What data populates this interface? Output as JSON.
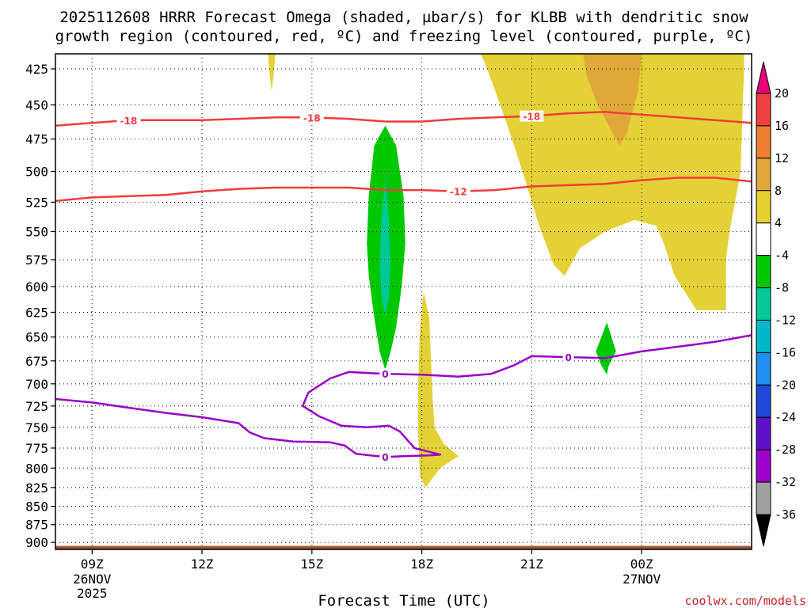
{
  "chart_data": {
    "type": "heatmap",
    "title_line1": "2025112608 HRRR Forecast Omega (shaded, µbar/s) for KLBB with dendritic snow",
    "title_line2": "growth region (contoured, red, ºC) and freezing level (contoured, purple, ºC)",
    "xlabel": "Forecast Time (UTC)",
    "credit": "coolwx.com/models",
    "x_range_hours": [
      8,
      27
    ],
    "y_scale": "log-pressure",
    "y_range_hpa": [
      415,
      910
    ],
    "y_ticks": [
      425,
      450,
      475,
      500,
      525,
      550,
      575,
      600,
      625,
      650,
      675,
      700,
      725,
      750,
      775,
      800,
      825,
      850,
      875,
      900
    ],
    "x_ticks": [
      {
        "hour": 9,
        "label": "09Z",
        "date": "26NOV",
        "year": "2025"
      },
      {
        "hour": 12,
        "label": "12Z",
        "date": "",
        "year": ""
      },
      {
        "hour": 15,
        "label": "15Z",
        "date": "",
        "year": ""
      },
      {
        "hour": 18,
        "label": "18Z",
        "date": "",
        "year": ""
      },
      {
        "hour": 21,
        "label": "21Z",
        "date": "",
        "year": ""
      },
      {
        "hour": 24,
        "label": "00Z",
        "date": "27NOV",
        "year": ""
      }
    ],
    "grid": true,
    "colorbar": {
      "levels": [
        20,
        16,
        12,
        8,
        4,
        -4,
        -8,
        -12,
        -16,
        -20,
        -24,
        -28,
        -32,
        -36
      ],
      "colors": [
        "#e8007a",
        "#f04040",
        "#f08030",
        "#e0a838",
        "#e8d030",
        "#ffffff",
        "#00c800",
        "#00c898",
        "#00b8c8",
        "#1e8ff0",
        "#2048d8",
        "#6010c8",
        "#9a00c8",
        "#a0a0a0",
        "#000000"
      ]
    },
    "omega_regions": [
      {
        "level": "4 to 8",
        "color": "#e3d137",
        "points": [
          [
            23.3,
            415
          ],
          [
            25.8,
            415
          ],
          [
            26.8,
            415
          ],
          [
            26.8,
            420
          ],
          [
            26.7,
            500
          ],
          [
            26.4,
            550
          ],
          [
            26.3,
            575
          ],
          [
            26.3,
            623
          ],
          [
            25.5,
            623
          ],
          [
            24.9,
            590
          ],
          [
            24.6,
            560
          ],
          [
            24.4,
            545
          ],
          [
            23.8,
            540
          ],
          [
            23.0,
            550
          ],
          [
            22.3,
            565
          ],
          [
            21.9,
            590
          ],
          [
            21.6,
            580
          ],
          [
            21.2,
            545
          ],
          [
            20.8,
            505
          ],
          [
            20.4,
            470
          ],
          [
            20.0,
            440
          ],
          [
            19.7,
            420
          ],
          [
            19.6,
            415
          ]
        ]
      },
      {
        "level": "8 to 12",
        "color": "#e0a838",
        "points": [
          [
            22.4,
            415
          ],
          [
            24.0,
            415
          ],
          [
            23.9,
            440
          ],
          [
            23.6,
            470
          ],
          [
            23.4,
            480
          ],
          [
            23.2,
            470
          ],
          [
            22.8,
            450
          ],
          [
            22.5,
            430
          ]
        ]
      },
      {
        "level": "4 to 8",
        "color": "#e3d137",
        "points": [
          [
            13.8,
            415
          ],
          [
            14.0,
            415
          ],
          [
            13.95,
            430
          ],
          [
            13.9,
            440
          ],
          [
            13.85,
            430
          ]
        ]
      },
      {
        "level": "4 to 8",
        "color": "#e3d137",
        "points": [
          [
            18.05,
            605
          ],
          [
            18.2,
            630
          ],
          [
            18.3,
            720
          ],
          [
            18.35,
            750
          ],
          [
            18.6,
            770
          ],
          [
            19.0,
            785
          ],
          [
            18.5,
            800
          ],
          [
            18.1,
            825
          ],
          [
            17.95,
            810
          ],
          [
            17.9,
            760
          ],
          [
            17.9,
            700
          ],
          [
            17.95,
            640
          ]
        ]
      },
      {
        "level": "-8 to -4",
        "color": "#00c800",
        "points": [
          [
            17.0,
            465
          ],
          [
            17.3,
            480
          ],
          [
            17.5,
            520
          ],
          [
            17.55,
            560
          ],
          [
            17.45,
            600
          ],
          [
            17.3,
            640
          ],
          [
            17.15,
            665
          ],
          [
            17.0,
            685
          ],
          [
            16.85,
            665
          ],
          [
            16.7,
            630
          ],
          [
            16.55,
            590
          ],
          [
            16.5,
            560
          ],
          [
            16.55,
            520
          ],
          [
            16.7,
            480
          ]
        ]
      },
      {
        "level": "-12 to -8",
        "color": "#00c898",
        "points": [
          [
            17.0,
            505
          ],
          [
            17.1,
            540
          ],
          [
            17.15,
            580
          ],
          [
            17.1,
            610
          ],
          [
            17.0,
            628
          ],
          [
            16.9,
            610
          ],
          [
            16.85,
            580
          ],
          [
            16.9,
            540
          ]
        ]
      },
      {
        "level": "-8 to -4",
        "color": "#00c800",
        "points": [
          [
            23.05,
            635
          ],
          [
            23.3,
            665
          ],
          [
            23.1,
            680
          ],
          [
            23.05,
            690
          ],
          [
            22.9,
            680
          ],
          [
            22.75,
            665
          ]
        ]
      }
    ],
    "red_contours": [
      {
        "label": "-18",
        "points": [
          [
            8.0,
            465
          ],
          [
            9.0,
            463
          ],
          [
            10.0,
            461
          ],
          [
            11.0,
            461
          ],
          [
            12.0,
            461
          ],
          [
            13.0,
            460
          ],
          [
            14.0,
            459
          ],
          [
            15.0,
            459
          ],
          [
            16.0,
            460
          ],
          [
            17.0,
            462
          ],
          [
            18.0,
            462
          ],
          [
            19.0,
            460
          ],
          [
            20.0,
            459
          ],
          [
            21.0,
            458
          ],
          [
            22.0,
            456
          ],
          [
            23.0,
            455
          ],
          [
            24.0,
            457
          ],
          [
            25.0,
            459
          ],
          [
            26.0,
            461
          ],
          [
            27.0,
            463
          ]
        ],
        "label_positions": [
          [
            10.0,
            461
          ],
          [
            15.0,
            459
          ],
          [
            21.0,
            458
          ]
        ]
      },
      {
        "label": "-12",
        "points": [
          [
            8.0,
            524
          ],
          [
            9.0,
            521
          ],
          [
            10.0,
            520
          ],
          [
            11.0,
            519
          ],
          [
            12.0,
            516
          ],
          [
            13.0,
            514
          ],
          [
            14.0,
            513
          ],
          [
            15.0,
            513
          ],
          [
            16.0,
            513
          ],
          [
            17.0,
            515
          ],
          [
            18.0,
            515
          ],
          [
            19.0,
            516
          ],
          [
            20.0,
            515
          ],
          [
            21.0,
            512
          ],
          [
            22.0,
            511
          ],
          [
            23.0,
            510
          ],
          [
            24.0,
            507
          ],
          [
            25.0,
            505
          ],
          [
            26.0,
            505
          ],
          [
            27.0,
            508
          ]
        ],
        "label_positions": [
          [
            19.0,
            516
          ]
        ]
      }
    ],
    "purple_contours": [
      {
        "label": "0",
        "points": [
          [
            8.0,
            717
          ],
          [
            9.0,
            721
          ],
          [
            10.0,
            727
          ],
          [
            11.0,
            733
          ],
          [
            12.0,
            738
          ],
          [
            13.0,
            745
          ],
          [
            13.3,
            756
          ],
          [
            13.7,
            763
          ],
          [
            14.5,
            767
          ],
          [
            15.5,
            768
          ],
          [
            15.9,
            772
          ],
          [
            16.2,
            782
          ],
          [
            16.6,
            784
          ],
          [
            17.0,
            786
          ],
          [
            17.5,
            785
          ],
          [
            18.2,
            784
          ],
          [
            18.5,
            783
          ],
          [
            17.8,
            775
          ],
          [
            17.4,
            755
          ],
          [
            17.1,
            748
          ],
          [
            16.5,
            750
          ],
          [
            15.8,
            748
          ],
          [
            15.2,
            737
          ],
          [
            14.75,
            725
          ],
          [
            14.9,
            710
          ],
          [
            15.5,
            694
          ],
          [
            16.0,
            687
          ],
          [
            17.0,
            689
          ],
          [
            18.0,
            690
          ],
          [
            19.0,
            692
          ],
          [
            19.9,
            689
          ],
          [
            20.5,
            680
          ],
          [
            21.0,
            670
          ],
          [
            22.0,
            671
          ],
          [
            23.0,
            672
          ],
          [
            24.0,
            665
          ],
          [
            25.0,
            660
          ],
          [
            26.0,
            655
          ],
          [
            27.0,
            648
          ]
        ],
        "label_positions": [
          [
            17.0,
            689
          ],
          [
            22.0,
            671
          ],
          [
            17.0,
            786
          ]
        ]
      }
    ],
    "terrain": {
      "color": "#a0522d",
      "pressure_hpa": 905
    }
  }
}
